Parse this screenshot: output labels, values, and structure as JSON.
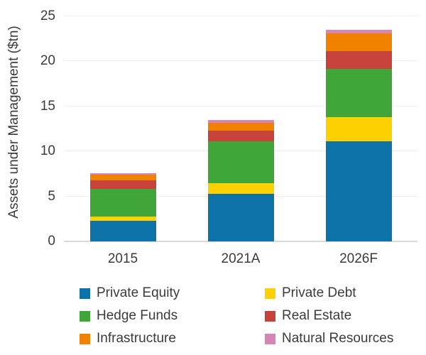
{
  "chart_data": {
    "type": "bar",
    "stacked": true,
    "title": "",
    "xlabel": "",
    "ylabel": "Assets under Management ($tn)",
    "categories": [
      "2015",
      "2021A",
      "2026F"
    ],
    "series": [
      {
        "name": "Private Equity",
        "color": "#0d72a7",
        "values": [
          2.3,
          5.3,
          11.1
        ]
      },
      {
        "name": "Private Debt",
        "color": "#fdd100",
        "values": [
          0.5,
          1.2,
          2.7
        ]
      },
      {
        "name": "Hedge Funds",
        "color": "#41a639",
        "values": [
          3.0,
          4.6,
          5.4
        ]
      },
      {
        "name": "Real Estate",
        "color": "#c7423a",
        "values": [
          1.0,
          1.2,
          1.9
        ]
      },
      {
        "name": "Infrastructure",
        "color": "#f08200",
        "values": [
          0.6,
          0.9,
          2.0
        ]
      },
      {
        "name": "Natural Resources",
        "color": "#d685b5",
        "values": [
          0.2,
          0.3,
          0.4
        ]
      }
    ],
    "totals": [
      7.6,
      13.5,
      23.5
    ],
    "ylim": [
      0,
      25
    ],
    "yticks": [
      0,
      5,
      10,
      15,
      20,
      25
    ],
    "grid": true,
    "legend_position": "bottom",
    "axis_text_color": "#3b3b3b",
    "gridline_color": "#ededed",
    "baseline_color": "#d9d9d9"
  }
}
